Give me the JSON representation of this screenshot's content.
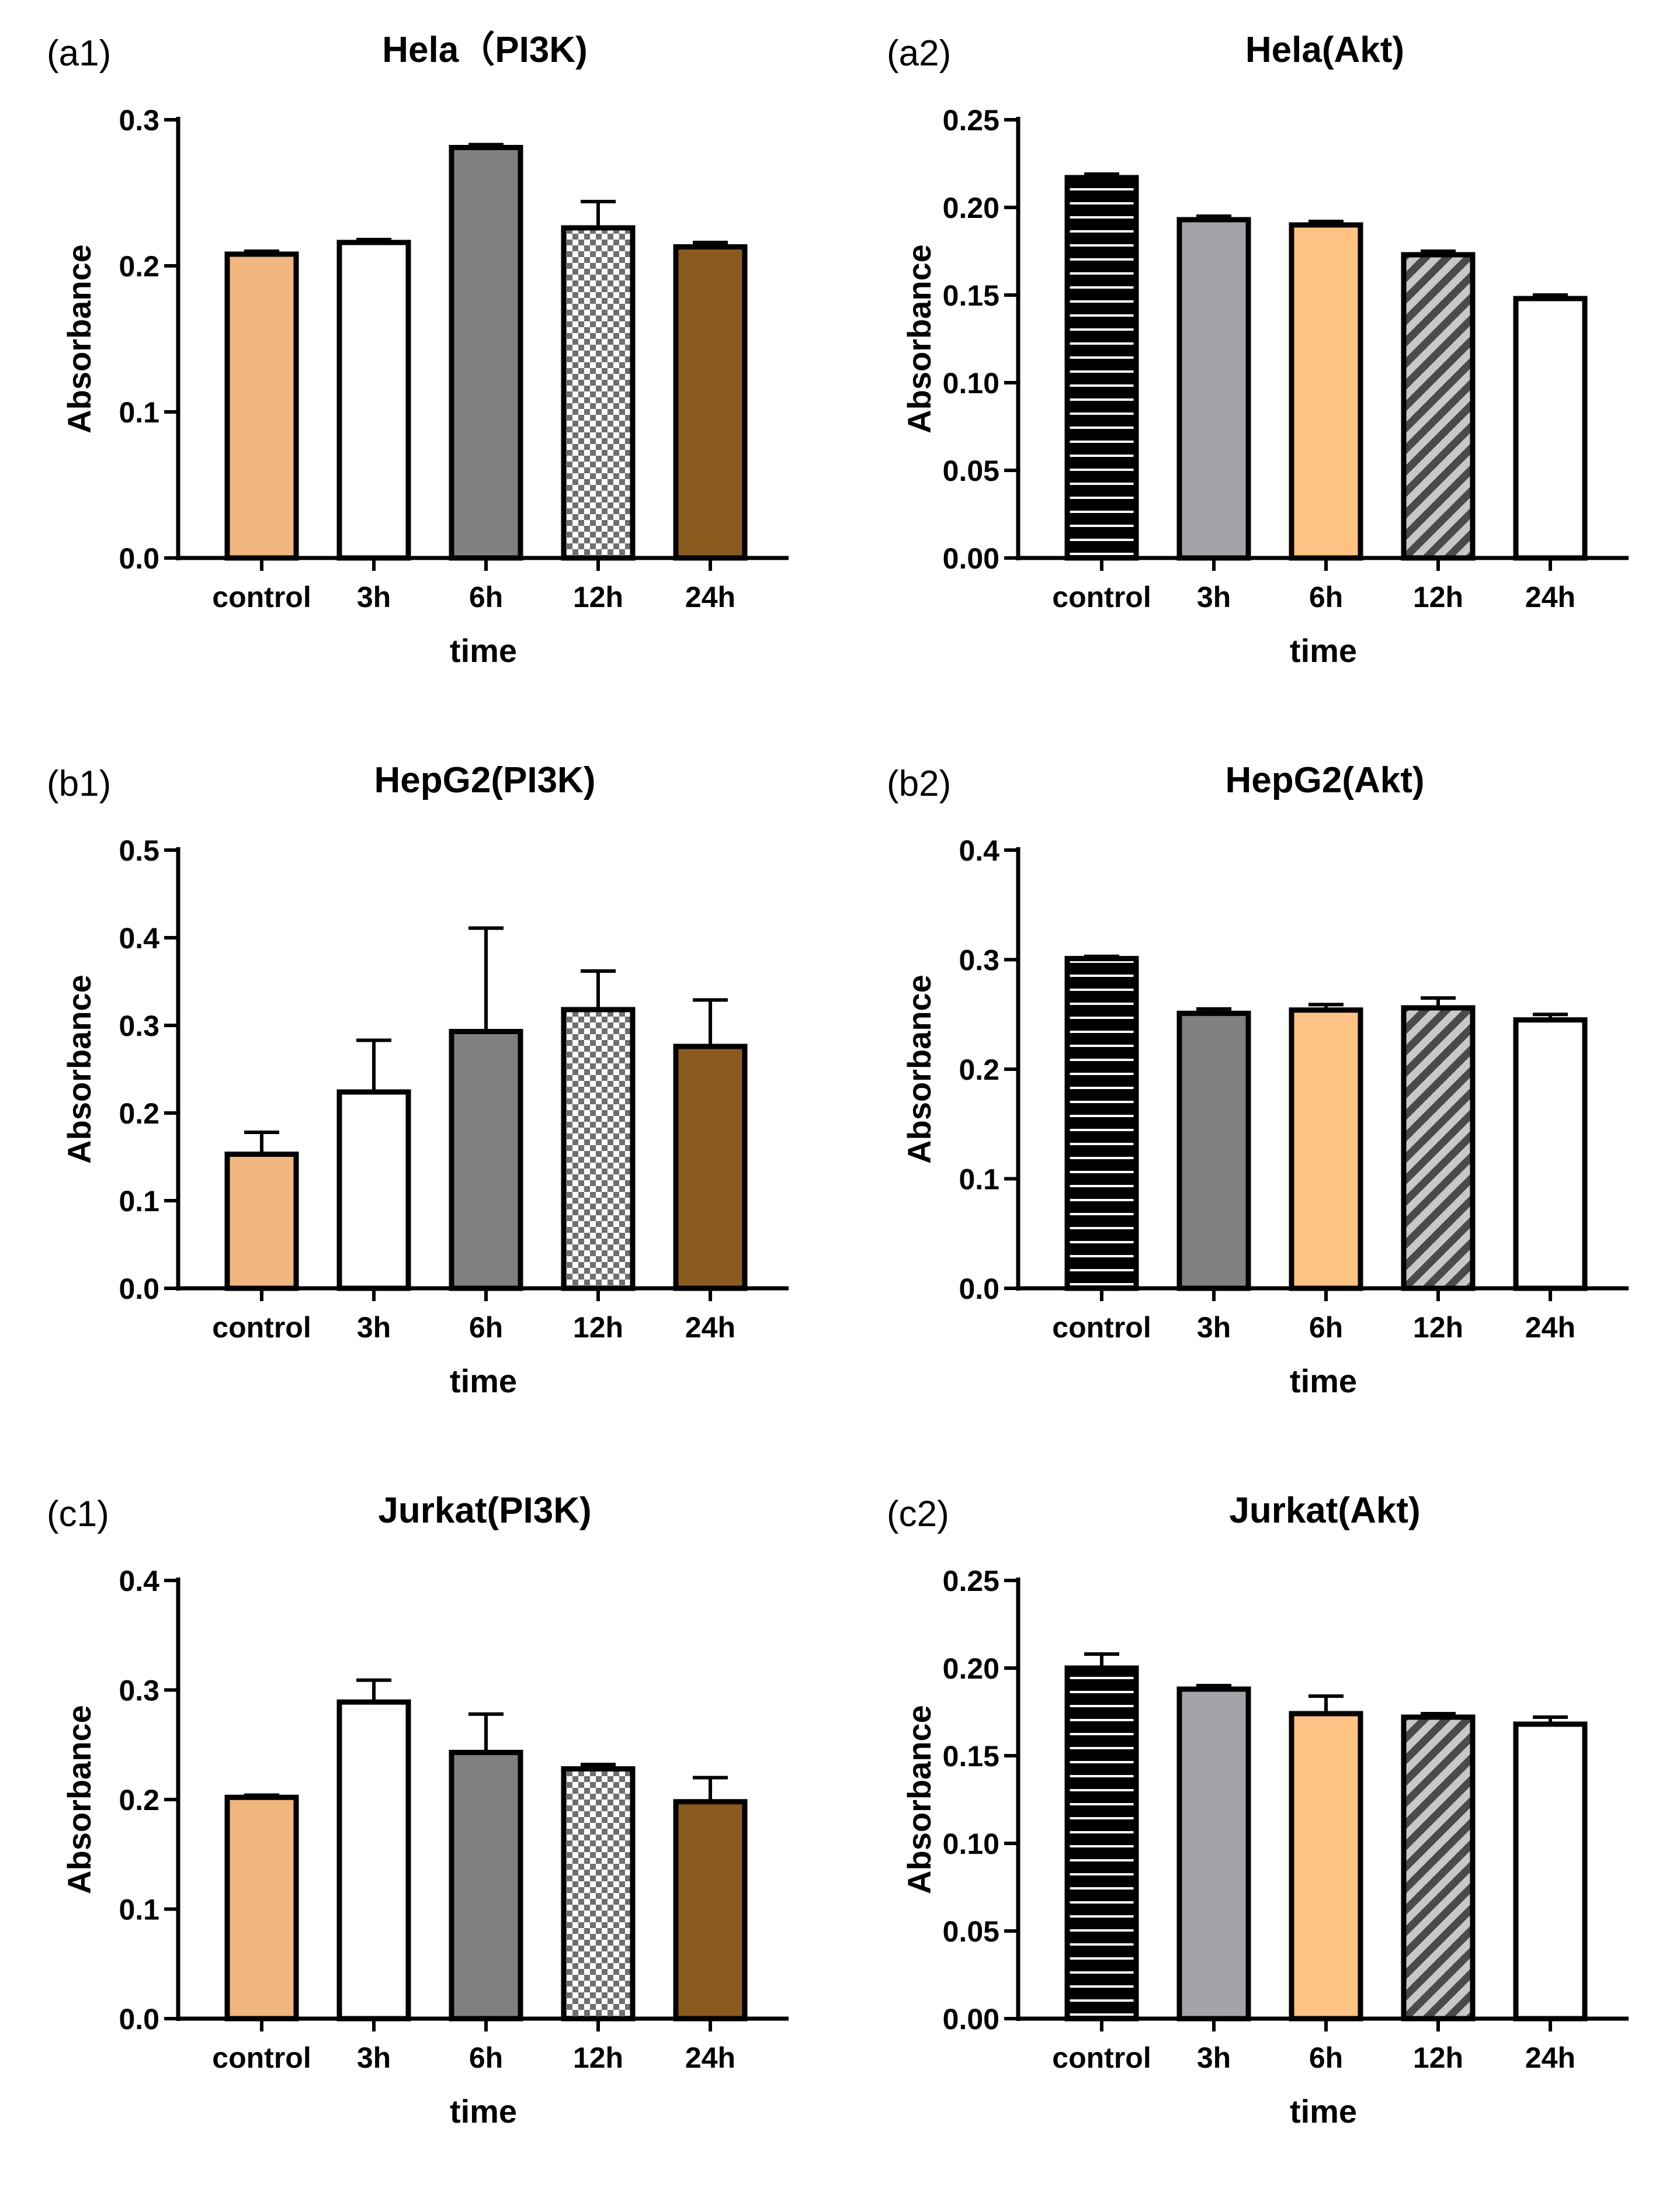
{
  "chart_data": [
    {
      "type": "bar",
      "panel_label": "(a1)",
      "title": "Hela（PI3K)",
      "xlabel": "time",
      "ylabel": "Absorbance",
      "categories": [
        "control",
        "3h",
        "6h",
        "12h",
        "24h"
      ],
      "values": [
        0.208,
        0.216,
        0.281,
        0.226,
        0.213
      ],
      "errors": [
        0.002,
        0.002,
        0.002,
        0.018,
        0.003
      ],
      "ylim": [
        0,
        0.3
      ],
      "yticks": [
        0.0,
        0.1,
        0.2,
        0.3
      ],
      "tick_decimals": 1,
      "fills": [
        "#f0b67f",
        "#ffffff",
        "#808080",
        "checker",
        "#8b5a1f"
      ]
    },
    {
      "type": "bar",
      "panel_label": "(a2)",
      "title": "Hela(Akt)",
      "xlabel": "time",
      "ylabel": "Absorbance",
      "categories": [
        "control",
        "3h",
        "6h",
        "12h",
        "24h"
      ],
      "values": [
        0.217,
        0.193,
        0.19,
        0.173,
        0.148
      ],
      "errors": [
        0.002,
        0.002,
        0.002,
        0.002,
        0.002
      ],
      "ylim": [
        0,
        0.25
      ],
      "yticks": [
        0.0,
        0.05,
        0.1,
        0.15,
        0.2,
        0.25
      ],
      "tick_decimals": 2,
      "fills": [
        "hstripe",
        "#a3a3a8",
        "#ffc285",
        "diagonal",
        "#ffffff"
      ]
    },
    {
      "type": "bar",
      "panel_label": "(b1)",
      "title": "HepG2(PI3K)",
      "xlabel": "time",
      "ylabel": "Absorbance",
      "categories": [
        "control",
        "3h",
        "6h",
        "12h",
        "24h"
      ],
      "values": [
        0.153,
        0.224,
        0.293,
        0.318,
        0.276
      ],
      "errors": [
        0.025,
        0.059,
        0.118,
        0.044,
        0.053
      ],
      "ylim": [
        0,
        0.5
      ],
      "yticks": [
        0.0,
        0.1,
        0.2,
        0.3,
        0.4,
        0.5
      ],
      "tick_decimals": 1,
      "fills": [
        "#f0b67f",
        "#ffffff",
        "#808080",
        "checker",
        "#8b5a1f"
      ]
    },
    {
      "type": "bar",
      "panel_label": "(b2)",
      "title": "HepG2(Akt)",
      "xlabel": "time",
      "ylabel": "Absorbance",
      "categories": [
        "control",
        "3h",
        "6h",
        "12h",
        "24h"
      ],
      "values": [
        0.301,
        0.251,
        0.254,
        0.256,
        0.245
      ],
      "errors": [
        0.002,
        0.004,
        0.005,
        0.009,
        0.005
      ],
      "ylim": [
        0,
        0.4
      ],
      "yticks": [
        0.0,
        0.1,
        0.2,
        0.3,
        0.4
      ],
      "tick_decimals": 1,
      "fills": [
        "hstripe",
        "#808080",
        "#ffc285",
        "diagonal",
        "#ffffff"
      ]
    },
    {
      "type": "bar",
      "panel_label": "(c1)",
      "title": "Jurkat(PI3K)",
      "xlabel": "time",
      "ylabel": "Absorbance",
      "categories": [
        "control",
        "3h",
        "6h",
        "12h",
        "24h"
      ],
      "values": [
        0.202,
        0.289,
        0.243,
        0.228,
        0.198
      ],
      "errors": [
        0.002,
        0.02,
        0.035,
        0.004,
        0.022
      ],
      "ylim": [
        0,
        0.4
      ],
      "yticks": [
        0.0,
        0.1,
        0.2,
        0.3,
        0.4
      ],
      "tick_decimals": 1,
      "fills": [
        "#f0b67f",
        "#ffffff",
        "#808080",
        "checker",
        "#8b5a1f"
      ]
    },
    {
      "type": "bar",
      "panel_label": "(c2)",
      "title": "Jurkat(Akt)",
      "xlabel": "time",
      "ylabel": "Absorbance",
      "categories": [
        "control",
        "3h",
        "6h",
        "12h",
        "24h"
      ],
      "values": [
        0.2,
        0.188,
        0.174,
        0.172,
        0.168
      ],
      "errors": [
        0.008,
        0.002,
        0.01,
        0.002,
        0.004
      ],
      "ylim": [
        0,
        0.25
      ],
      "yticks": [
        0.0,
        0.05,
        0.1,
        0.15,
        0.2,
        0.25
      ],
      "tick_decimals": 2,
      "fills": [
        "hstripe",
        "#a3a3a8",
        "#ffc285",
        "diagonal",
        "#ffffff"
      ]
    }
  ]
}
